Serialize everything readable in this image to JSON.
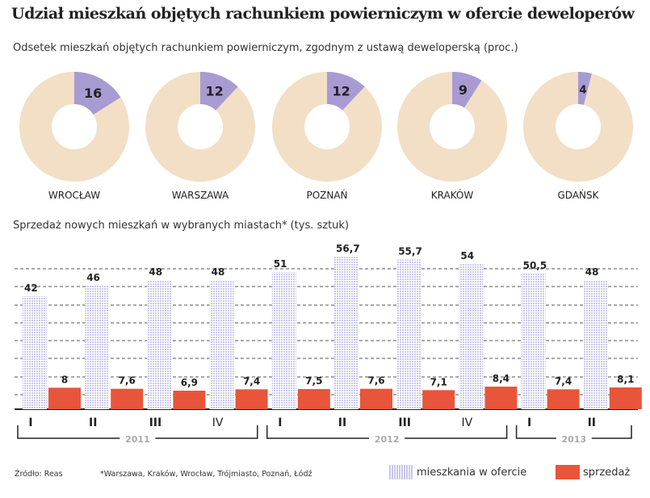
{
  "title": "Udział mieszkań objętych rachunkiem powierniczym w ofercie deweloperów",
  "colors": {
    "donut_bg": "#f2dfc6",
    "donut_fill": "#a89bd2",
    "offer": "#c9c6e8",
    "sales": "#e8553a"
  },
  "legend": {
    "offer": "mieszkania w ofercie",
    "sales": "sprzedaż"
  },
  "footnote": {
    "source": "Źródło: Reas",
    "note": "*Warszawa, Kraków, Wrocław, Trójmiasto, Poznań, Łódź"
  },
  "chart_data": [
    {
      "type": "pie",
      "variant": "donut",
      "title": "Odsetek mieszkań objętych rachunkiem powierniczym, zgodnym z ustawą deweloperską (proc.)",
      "categories": [
        "WROCŁAW",
        "WARSZAWA",
        "POZNAŃ",
        "KRAKÓW",
        "GDAŃSK"
      ],
      "values": [
        16,
        12,
        12,
        9,
        4
      ]
    },
    {
      "type": "bar",
      "title": "Sprzedaż nowych mieszkań w wybranych miastach* (tys. sztuk)",
      "categories": [
        "I",
        "II",
        "III",
        "IV",
        "I",
        "II",
        "III",
        "IV",
        "I",
        "II"
      ],
      "years": [
        {
          "label": "2011",
          "quarters": 4
        },
        {
          "label": "2012",
          "quarters": 4
        },
        {
          "label": "2013",
          "quarters": 2
        }
      ],
      "series": [
        {
          "name": "mieszkania w ofercie",
          "values": [
            42,
            46,
            48,
            48,
            51,
            56.7,
            55.7,
            54,
            50.5,
            48
          ],
          "labels": [
            "42",
            "46",
            "48",
            "48",
            "51",
            "56,7",
            "55,7",
            "54",
            "50,5",
            "48"
          ]
        },
        {
          "name": "sprzedaż",
          "values": [
            8,
            7.6,
            6.9,
            7.4,
            7.5,
            7.6,
            7.1,
            8.4,
            7.4,
            8.1
          ],
          "labels": [
            "8",
            "7,6",
            "6,9",
            "7,4",
            "7,5",
            "7,6",
            "7,1",
            "8,4",
            "7,4",
            "8,1"
          ]
        }
      ],
      "ylim": [
        0,
        60
      ],
      "grid": true
    }
  ]
}
